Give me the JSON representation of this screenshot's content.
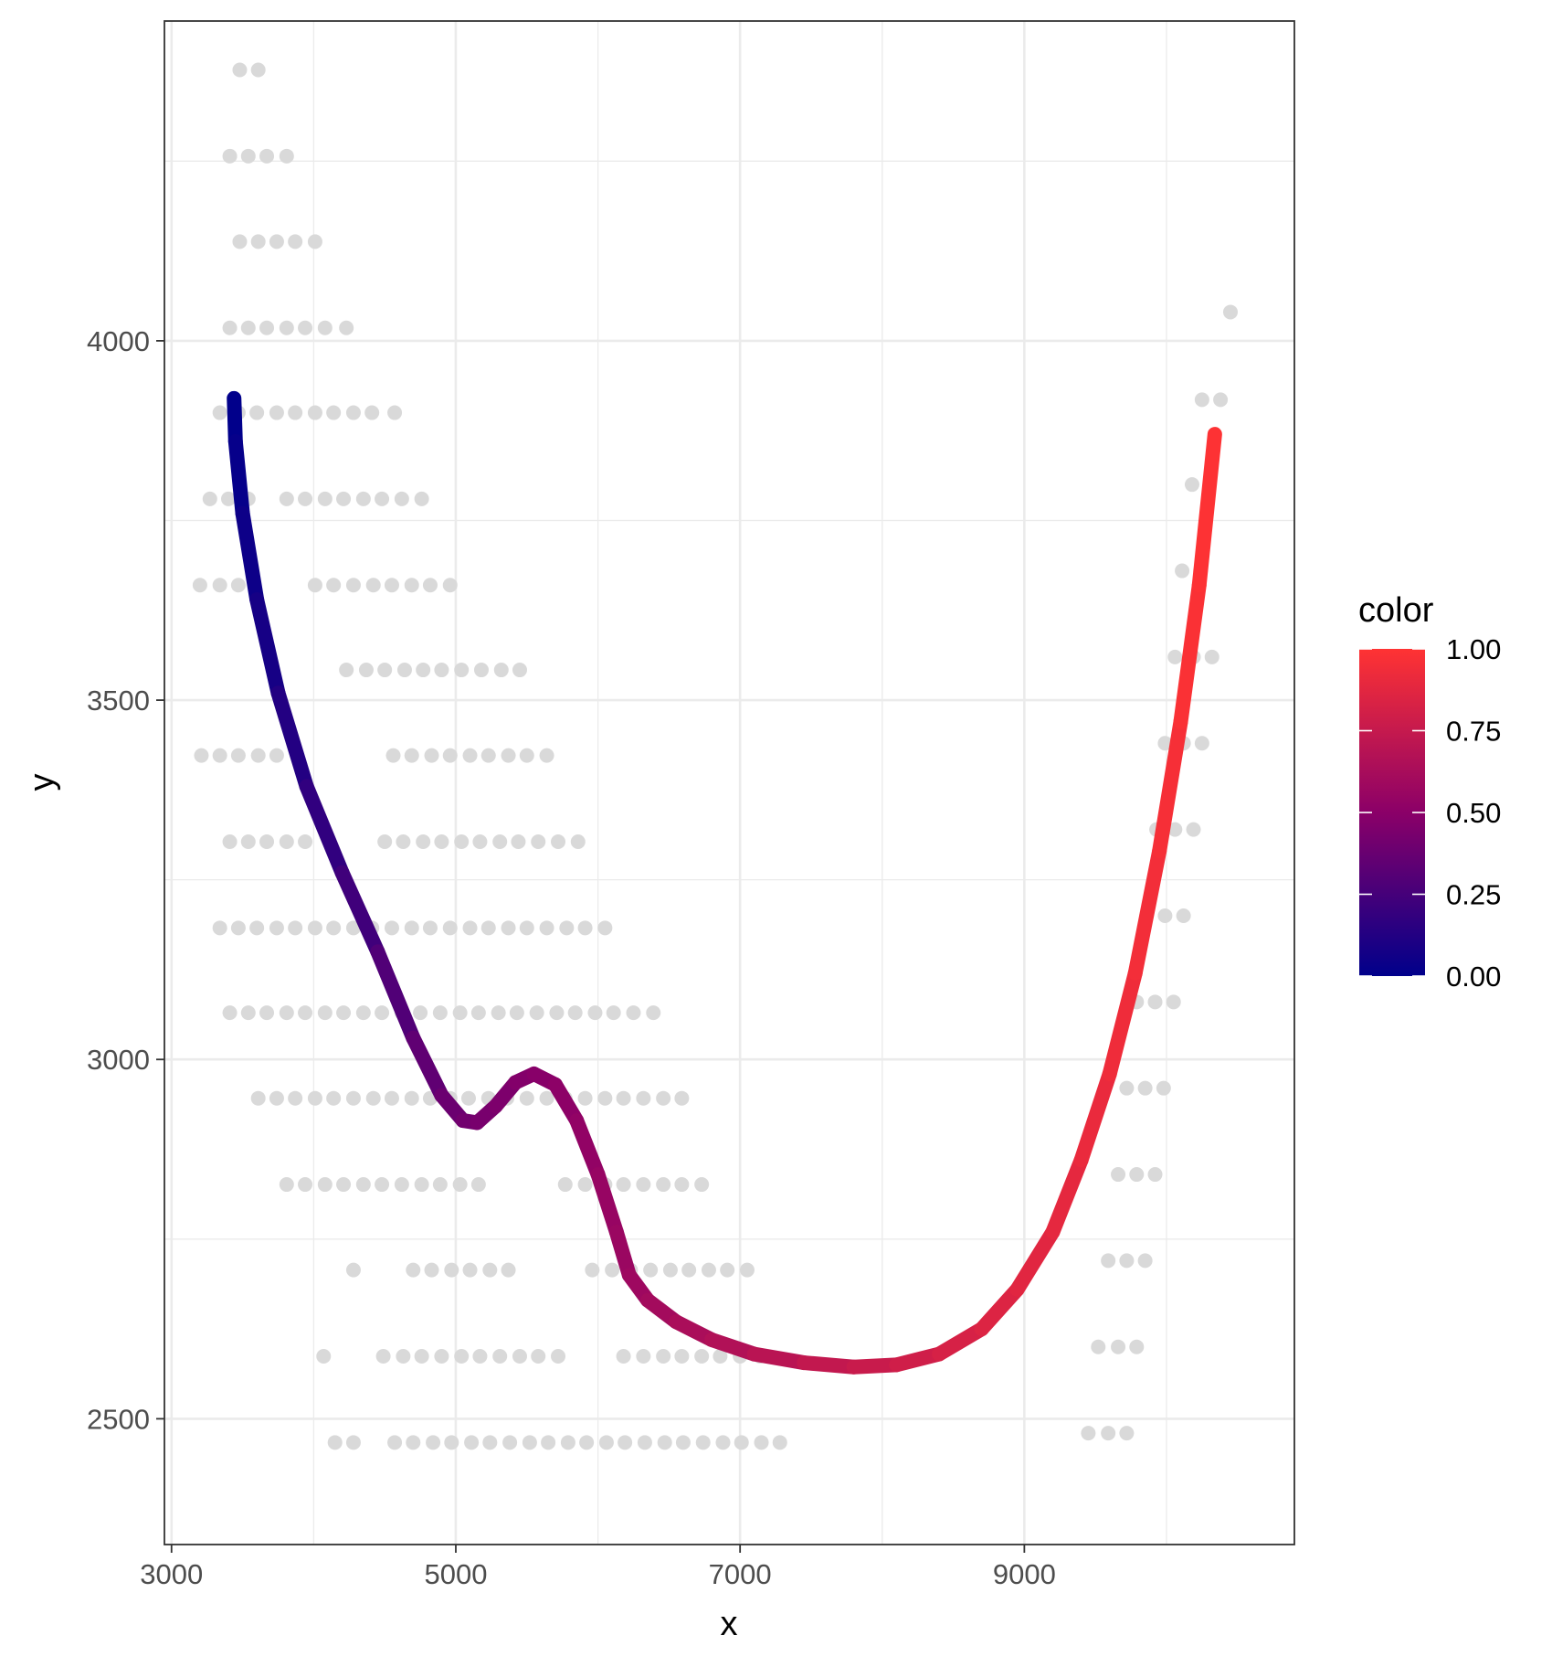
{
  "chart_data": {
    "type": "scatter",
    "xlabel": "x",
    "ylabel": "y",
    "xlim": [
      2950,
      10900
    ],
    "ylim": [
      2325,
      4445
    ],
    "x_ticks": [
      3000,
      5000,
      7000,
      9000
    ],
    "x_tick_labels": [
      "3000",
      "5000",
      "7000",
      "9000"
    ],
    "x_minor": [
      4000,
      6000,
      8000,
      10000
    ],
    "y_ticks": [
      2500,
      3000,
      3500,
      4000
    ],
    "y_tick_labels": [
      "2500",
      "3000",
      "3500",
      "4000"
    ],
    "y_minor": [
      2750,
      3250,
      3750,
      4250
    ],
    "grid": true,
    "point_color": "#d9d9d9",
    "point_rows": [
      {
        "y": 4377,
        "x": [
          3480,
          3610
        ]
      },
      {
        "y": 4257,
        "x": [
          3410,
          3540,
          3670,
          3810
        ]
      },
      {
        "y": 4138,
        "x": [
          3480,
          3610,
          3740,
          3870,
          4010
        ]
      },
      {
        "y": 4018,
        "x": [
          3410,
          3540,
          3670,
          3810,
          3940,
          4080,
          4230
        ]
      },
      {
        "y": 3900,
        "x": [
          3340,
          3470,
          3600,
          3740,
          3870,
          4010,
          4140,
          4280,
          4410,
          4570
        ]
      },
      {
        "y": 3780,
        "x": [
          3270,
          3400,
          3540,
          3810,
          3940,
          4080,
          4210,
          4350,
          4480,
          4620,
          4760
        ]
      },
      {
        "y": 3660,
        "x": [
          3200,
          3340,
          3470,
          4010,
          4140,
          4280,
          4420,
          4550,
          4690,
          4820,
          4960
        ]
      },
      {
        "y": 3542,
        "x": [
          4230,
          4370,
          4500,
          4640,
          4770,
          4900,
          5040,
          5180,
          5320,
          5450
        ]
      },
      {
        "y": 3423,
        "x": [
          3210,
          3340,
          3470,
          3610,
          3740,
          4560,
          4690,
          4830,
          4960,
          5100,
          5230,
          5370,
          5500,
          5640
        ]
      },
      {
        "y": 3303,
        "x": [
          3410,
          3540,
          3670,
          3810,
          3940,
          4500,
          4630,
          4770,
          4900,
          5040,
          5170,
          5310,
          5440,
          5580,
          5720,
          5860
        ]
      },
      {
        "y": 3183,
        "x": [
          3340,
          3470,
          3600,
          3740,
          3870,
          4010,
          4140,
          4280,
          4410,
          4550,
          4690,
          4820,
          4960,
          5100,
          5230,
          5370,
          5500,
          5640,
          5780,
          5910,
          6050
        ]
      },
      {
        "y": 3065,
        "x": [
          3410,
          3540,
          3670,
          3810,
          3940,
          4080,
          4210,
          4350,
          4480,
          4620,
          4750,
          4890,
          5030,
          5160,
          5300,
          5430,
          5570,
          5710,
          5840,
          5980,
          6110,
          6250,
          6390
        ]
      },
      {
        "y": 2946,
        "x": [
          3610,
          3740,
          3870,
          4010,
          4140,
          4280,
          4420,
          4550,
          4690,
          4820,
          4960,
          5090,
          5230,
          5360,
          5500,
          5640,
          5770,
          5910,
          6050,
          6180,
          6320,
          6460,
          6590
        ]
      },
      {
        "y": 2826,
        "x": [
          3810,
          3940,
          4080,
          4210,
          4350,
          4480,
          4620,
          4760,
          4890,
          5030,
          5160,
          5770,
          5910,
          6050,
          6180,
          6320,
          6460,
          6590,
          6730
        ]
      },
      {
        "y": 2707,
        "x": [
          4280,
          4700,
          4830,
          4970,
          5100,
          5240,
          5370,
          5960,
          6100,
          6230,
          6370,
          6510,
          6640,
          6780,
          6910,
          7050
        ]
      },
      {
        "y": 2587,
        "x": [
          4070,
          4490,
          4630,
          4760,
          4900,
          5040,
          5170,
          5310,
          5450,
          5580,
          5720,
          6180,
          6320,
          6460,
          6590,
          6730,
          6860,
          7000,
          7140
        ]
      },
      {
        "y": 2467,
        "x": [
          4150,
          4280,
          4570,
          4700,
          4840,
          4970,
          5110,
          5240,
          5380,
          5520,
          5650,
          5790,
          5920,
          6060,
          6190,
          6330,
          6470,
          6600,
          6740,
          6880,
          7010,
          7150,
          7280
        ]
      },
      {
        "y": 4040,
        "x": [
          10450
        ]
      },
      {
        "y": 3918,
        "x": [
          10250,
          10380
        ]
      },
      {
        "y": 3800,
        "x": [
          10180
        ]
      },
      {
        "y": 3680,
        "x": [
          10110,
          10240
        ]
      },
      {
        "y": 3560,
        "x": [
          10060,
          10190,
          10320
        ]
      },
      {
        "y": 3440,
        "x": [
          9990,
          10120,
          10250
        ]
      },
      {
        "y": 3320,
        "x": [
          9930,
          10060,
          10190
        ]
      },
      {
        "y": 3200,
        "x": [
          9860,
          9990,
          10120
        ]
      },
      {
        "y": 3080,
        "x": [
          9790,
          9920,
          10050
        ]
      },
      {
        "y": 2960,
        "x": [
          9720,
          9850,
          9980
        ]
      },
      {
        "y": 2840,
        "x": [
          9660,
          9790,
          9920
        ]
      },
      {
        "y": 2720,
        "x": [
          9590,
          9720,
          9850
        ]
      },
      {
        "y": 2600,
        "x": [
          9520,
          9660,
          9790
        ]
      },
      {
        "y": 2480,
        "x": [
          9450,
          9590,
          9720
        ]
      }
    ],
    "curve": [
      {
        "x": 3440,
        "y": 3920,
        "c": 0.0
      },
      {
        "x": 3450,
        "y": 3860,
        "c": 0.01
      },
      {
        "x": 3500,
        "y": 3760,
        "c": 0.03
      },
      {
        "x": 3600,
        "y": 3640,
        "c": 0.06
      },
      {
        "x": 3750,
        "y": 3510,
        "c": 0.1
      },
      {
        "x": 3950,
        "y": 3380,
        "c": 0.15
      },
      {
        "x": 4200,
        "y": 3260,
        "c": 0.2
      },
      {
        "x": 4450,
        "y": 3150,
        "c": 0.26
      },
      {
        "x": 4700,
        "y": 3030,
        "c": 0.32
      },
      {
        "x": 4900,
        "y": 2950,
        "c": 0.37
      },
      {
        "x": 5050,
        "y": 2915,
        "c": 0.4
      },
      {
        "x": 5150,
        "y": 2912,
        "c": 0.42
      },
      {
        "x": 5280,
        "y": 2935,
        "c": 0.44
      },
      {
        "x": 5420,
        "y": 2968,
        "c": 0.46
      },
      {
        "x": 5550,
        "y": 2980,
        "c": 0.48
      },
      {
        "x": 5700,
        "y": 2965,
        "c": 0.5
      },
      {
        "x": 5850,
        "y": 2915,
        "c": 0.52
      },
      {
        "x": 6000,
        "y": 2840,
        "c": 0.54
      },
      {
        "x": 6130,
        "y": 2760,
        "c": 0.56
      },
      {
        "x": 6220,
        "y": 2700,
        "c": 0.57
      },
      {
        "x": 6350,
        "y": 2665,
        "c": 0.59
      },
      {
        "x": 6550,
        "y": 2635,
        "c": 0.62
      },
      {
        "x": 6800,
        "y": 2610,
        "c": 0.65
      },
      {
        "x": 7100,
        "y": 2590,
        "c": 0.68
      },
      {
        "x": 7450,
        "y": 2578,
        "c": 0.72
      },
      {
        "x": 7800,
        "y": 2572,
        "c": 0.75
      },
      {
        "x": 8100,
        "y": 2575,
        "c": 0.78
      },
      {
        "x": 8400,
        "y": 2590,
        "c": 0.81
      },
      {
        "x": 8700,
        "y": 2625,
        "c": 0.84
      },
      {
        "x": 8950,
        "y": 2680,
        "c": 0.86
      },
      {
        "x": 9200,
        "y": 2760,
        "c": 0.88
      },
      {
        "x": 9400,
        "y": 2860,
        "c": 0.9
      },
      {
        "x": 9600,
        "y": 2980,
        "c": 0.92
      },
      {
        "x": 9780,
        "y": 3120,
        "c": 0.94
      },
      {
        "x": 9950,
        "y": 3290,
        "c": 0.955
      },
      {
        "x": 10100,
        "y": 3470,
        "c": 0.97
      },
      {
        "x": 10230,
        "y": 3660,
        "c": 0.985
      },
      {
        "x": 10340,
        "y": 3870,
        "c": 1.0
      }
    ],
    "legend": {
      "title": "color",
      "position": "right",
      "ticks": [
        0.0,
        0.25,
        0.5,
        0.75,
        1.0
      ],
      "tick_labels": [
        "0.00",
        "0.25",
        "0.50",
        "0.75",
        "1.00"
      ],
      "low_color": "#00008b",
      "mid_color": "#8b0068",
      "high_color": "#ff3333"
    }
  }
}
